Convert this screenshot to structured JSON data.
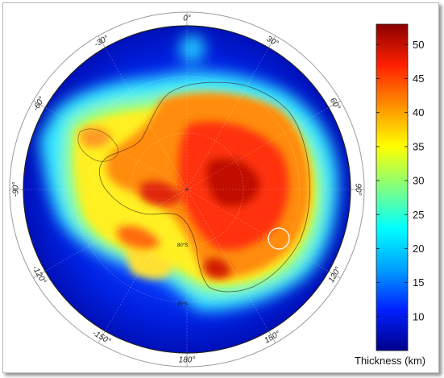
{
  "map": {
    "longitude_labels": [
      {
        "text": "-30°",
        "lon": -30
      },
      {
        "text": "0°",
        "lon": 0
      },
      {
        "text": "30°",
        "lon": 30
      },
      {
        "text": "60°",
        "lon": 60
      },
      {
        "text": "90°",
        "lon": 90
      },
      {
        "text": "120°",
        "lon": 120
      },
      {
        "text": "150°",
        "lon": 150
      },
      {
        "text": "180°",
        "lon": 180
      },
      {
        "text": "-150°",
        "lon": -150
      },
      {
        "text": "-120°",
        "lon": -120
      },
      {
        "text": "-90°",
        "lon": -90
      },
      {
        "text": "-60°",
        "lon": -60
      }
    ],
    "inner_labels": [
      "80°S",
      "70°S"
    ]
  },
  "colorbar": {
    "title": "Thickness (km)",
    "min": 5,
    "max": 53,
    "ticks": [
      10,
      15,
      20,
      25,
      30,
      35,
      40,
      45,
      50
    ],
    "colors": [
      "#00008b",
      "#0020ff",
      "#00a0ff",
      "#00ffff",
      "#80ff80",
      "#ffff00",
      "#ff9000",
      "#ff2000",
      "#8b0000"
    ]
  }
}
